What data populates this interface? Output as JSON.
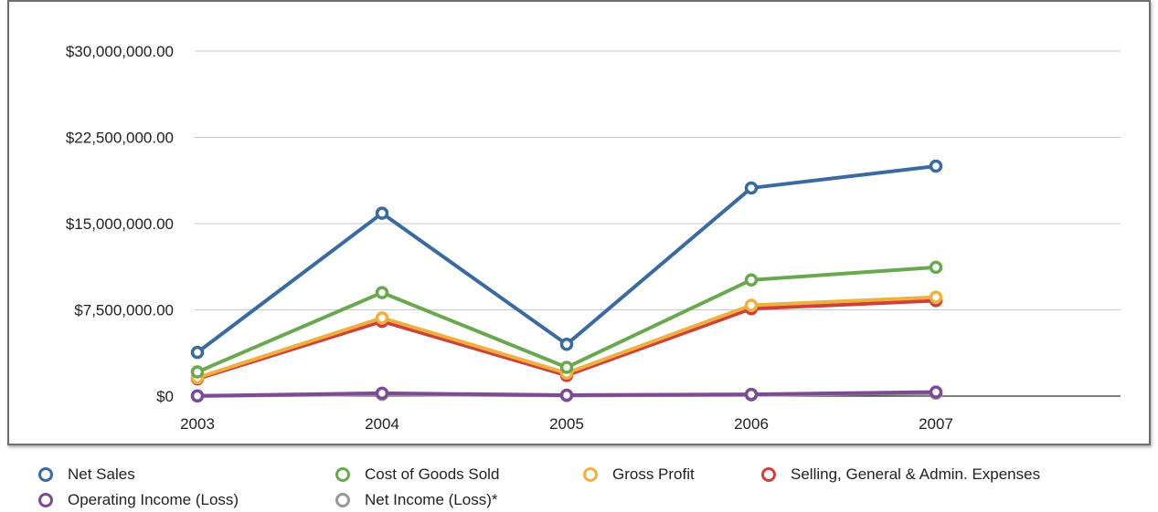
{
  "chart_data": {
    "type": "line",
    "title": "",
    "xlabel": "",
    "ylabel": "",
    "categories": [
      "2003",
      "2004",
      "2005",
      "2006",
      "2007"
    ],
    "y_ticks": [
      "$0",
      "$7,500,000.00",
      "$15,000,000.00",
      "$22,500,000.00",
      "$30,000,000.00"
    ],
    "ylim": [
      0,
      30000000
    ],
    "grid": true,
    "legend_position": "bottom",
    "series": [
      {
        "name": "Net Sales",
        "color": "#3a6aa0",
        "values": [
          3800000,
          15900000,
          4500000,
          18100000,
          20000000
        ]
      },
      {
        "name": "Cost of Goods Sold",
        "color": "#6aa84f",
        "values": [
          2100000,
          9000000,
          2500000,
          10100000,
          11200000
        ]
      },
      {
        "name": "Gross Profit",
        "color": "#f0b040",
        "values": [
          1600000,
          6800000,
          2000000,
          7900000,
          8600000
        ]
      },
      {
        "name": "Selling, General & Admin. Expenses",
        "color": "#d0403a",
        "values": [
          1500000,
          6500000,
          1800000,
          7600000,
          8300000
        ]
      },
      {
        "name": "Operating Income (Loss)",
        "color": "#7d4a96",
        "values": [
          20000,
          250000,
          80000,
          150000,
          350000
        ]
      },
      {
        "name": "Net Income (Loss)*",
        "color": "#999999",
        "values": [
          10000,
          150000,
          50000,
          100000,
          250000
        ]
      }
    ]
  }
}
